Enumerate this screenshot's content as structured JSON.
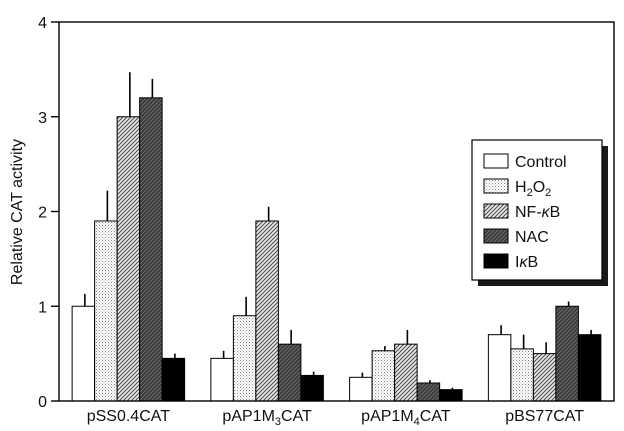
{
  "chart_data": {
    "type": "bar",
    "title": "",
    "xlabel": "",
    "ylabel": "Relative CAT activity",
    "ylim": [
      0,
      4
    ],
    "yticks": [
      "0",
      "1",
      "2",
      "3",
      "4"
    ],
    "grid": false,
    "legend_position": "right",
    "categories": [
      {
        "base": "pSS0.4CAT",
        "sub": ""
      },
      {
        "base": "pAP1M",
        "sub": "3",
        "tail": "CAT"
      },
      {
        "base": "pAP1M",
        "sub": "4",
        "tail": "CAT"
      },
      {
        "base": "pBS77CAT",
        "sub": ""
      }
    ],
    "series": [
      {
        "name": "Control",
        "legend": {
          "base": "Control"
        },
        "pattern": "white",
        "values": [
          1.0,
          0.45,
          0.25,
          0.7
        ],
        "errors": [
          0.13,
          0.08,
          0.05,
          0.1
        ]
      },
      {
        "name": "H2O2",
        "legend": {
          "base": "H",
          "sub": "2",
          "mid": "O",
          "sub2": "2"
        },
        "pattern": "dots",
        "values": [
          1.9,
          0.9,
          0.53,
          0.55
        ],
        "errors": [
          0.32,
          0.2,
          0.05,
          0.15
        ]
      },
      {
        "name": "NF-κB",
        "legend": {
          "base": "NF-",
          "italic": "κ",
          "tail": "B"
        },
        "pattern": "hatch",
        "values": [
          3.0,
          1.9,
          0.6,
          0.5
        ],
        "errors": [
          0.47,
          0.15,
          0.15,
          0.12
        ]
      },
      {
        "name": "NAC",
        "legend": {
          "base": "NAC"
        },
        "pattern": "dark",
        "values": [
          3.2,
          0.6,
          0.19,
          1.0
        ],
        "errors": [
          0.2,
          0.15,
          0.03,
          0.05
        ]
      },
      {
        "name": "IκB",
        "legend": {
          "base": "I",
          "italic": "κ",
          "tail": "B"
        },
        "pattern": "black",
        "values": [
          0.45,
          0.27,
          0.12,
          0.7
        ],
        "errors": [
          0.05,
          0.04,
          0.02,
          0.05
        ]
      }
    ]
  }
}
